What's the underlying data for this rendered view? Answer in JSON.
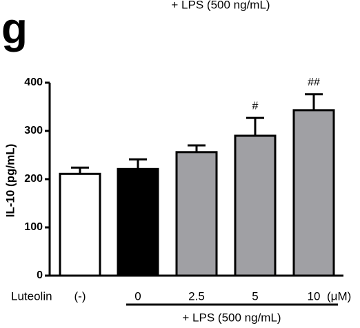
{
  "chart_data": {
    "type": "bar",
    "top_text": "+ LPS (500 ng/mL)",
    "panel_label": "g",
    "y_label": "IL-10 (pg/mL)",
    "x_prefix": "Luteolin",
    "x_unit": "(μM)",
    "group_label": "+ LPS (500 ng/mL)",
    "categories": [
      "(-)",
      "0",
      "2.5",
      "5",
      "10"
    ],
    "values": [
      211,
      221,
      256,
      290,
      343
    ],
    "errors": [
      13,
      20,
      14,
      37,
      33
    ],
    "colors": [
      "#ffffff",
      "#000000",
      "#a0a0a4",
      "#a0a0a4",
      "#a0a0a4"
    ],
    "annotations": [
      null,
      null,
      null,
      "#",
      "##"
    ],
    "ylim": [
      0,
      400
    ],
    "yticks": [
      0,
      100,
      200,
      300,
      400
    ]
  }
}
